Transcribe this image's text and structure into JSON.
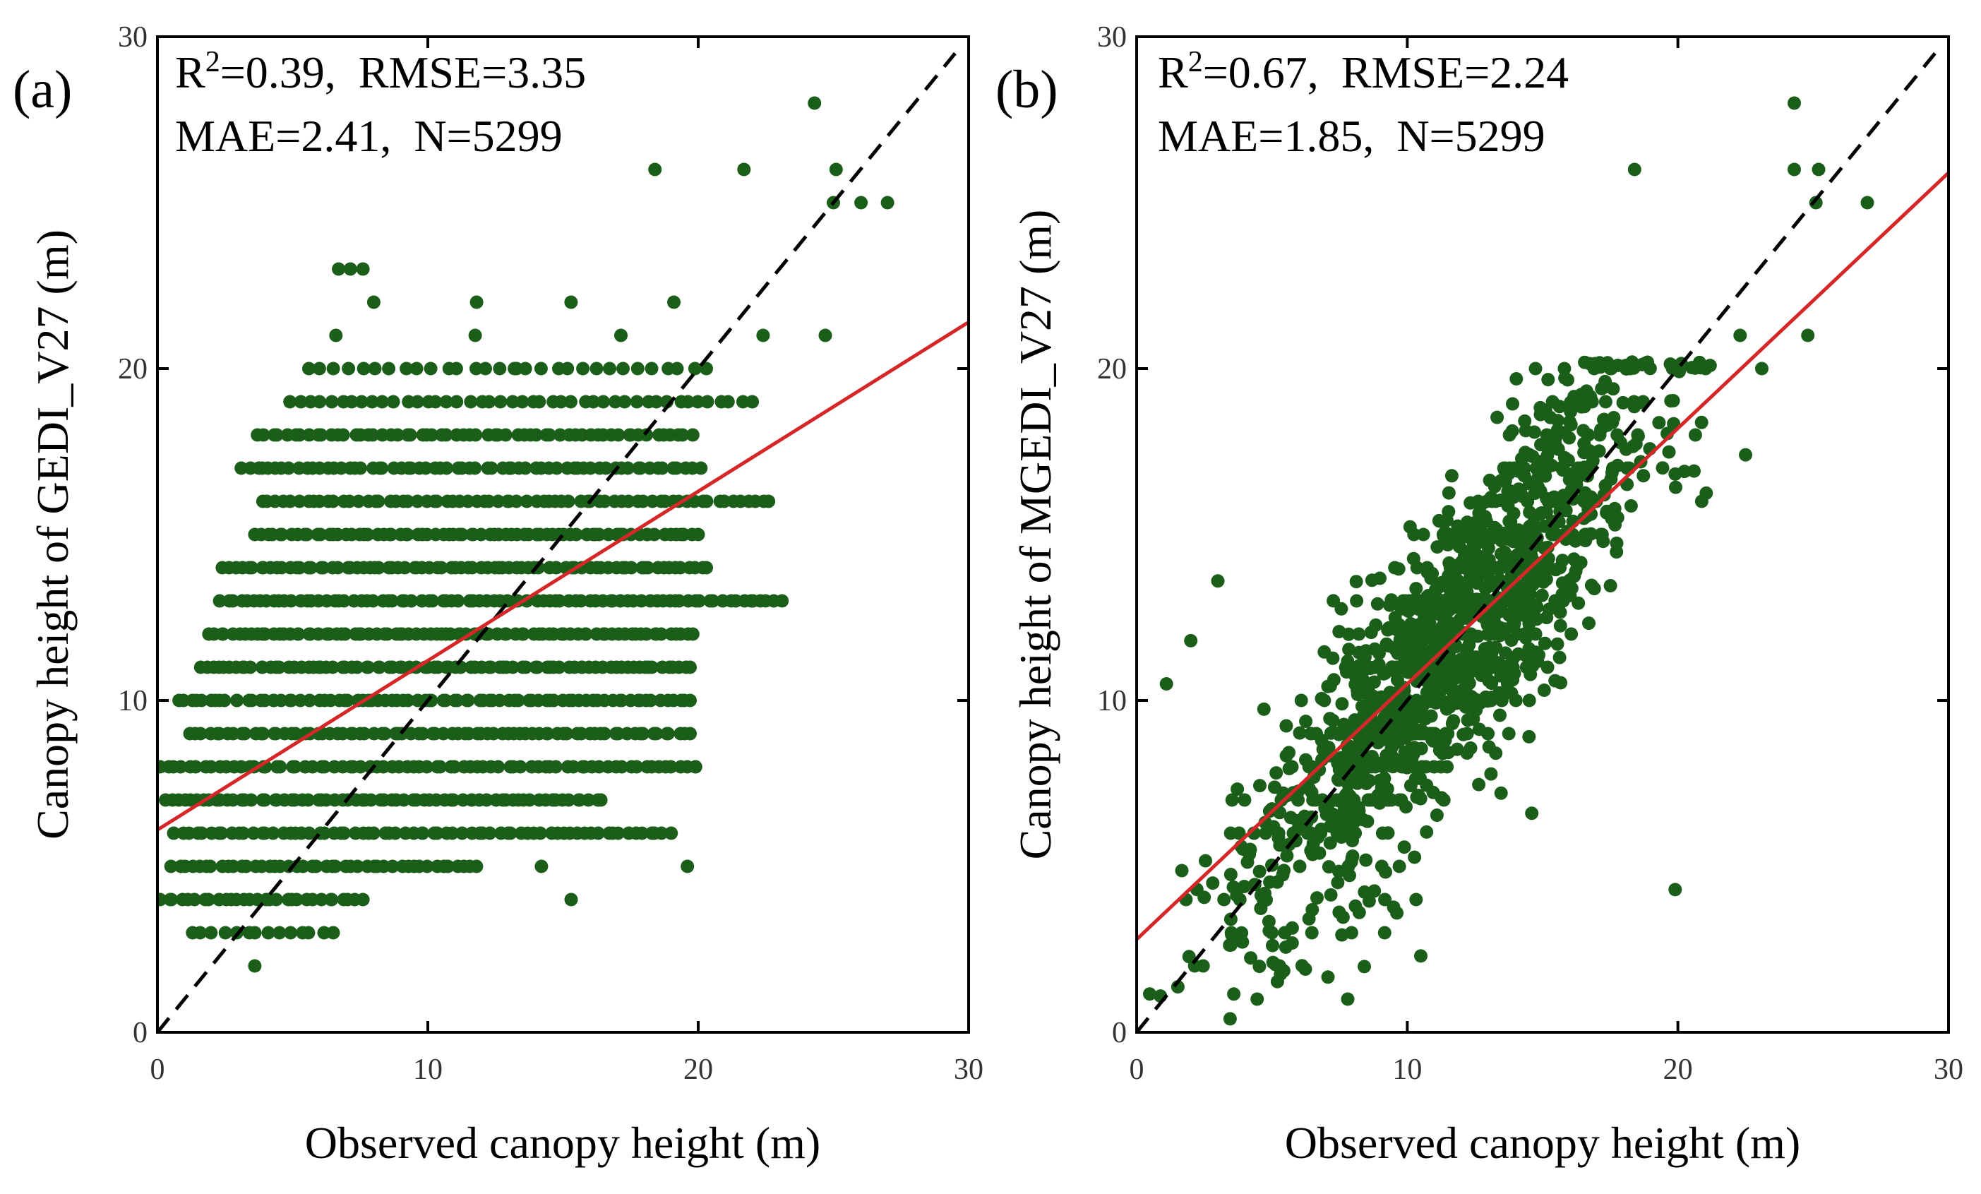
{
  "chart_data": [
    {
      "type": "scatter",
      "panel_label": "(a)",
      "xlabel": "Observed canopy height (m)",
      "ylabel": "Canopy height of GEDI_V27 (m)",
      "xlim": [
        0,
        30
      ],
      "ylim": [
        0,
        30
      ],
      "xticks": [
        "0",
        "10",
        "20",
        "30"
      ],
      "yticks": [
        "0",
        "10",
        "20",
        "30"
      ],
      "stats": {
        "line1_prefix": "R",
        "line1_sup": "2",
        "line1_rest": "=0.39,  RMSE=3.35",
        "line2": "MAE=2.41,  N=5299"
      },
      "n": 5299,
      "fit_line": {
        "slope": 0.51,
        "intercept": 6.1,
        "color": "#d62728"
      },
      "reference_line": {
        "type": "1:1",
        "style": "dashed",
        "color": "#000000"
      },
      "point_color": "#1a5e1a",
      "quantized_y": true,
      "clusters": [
        {
          "y": 2,
          "x_min": 3.5,
          "x_max": 3.7,
          "count": 1
        },
        {
          "y": 3,
          "x_min": 1.3,
          "x_max": 6.5,
          "count": 14
        },
        {
          "y": 4,
          "x_min": 0.1,
          "x_max": 7.6,
          "count": 30
        },
        {
          "y": 5,
          "x_min": 0.5,
          "x_max": 11.8,
          "count": 45
        },
        {
          "y": 6,
          "x_min": 0.6,
          "x_max": 19.0,
          "count": 70
        },
        {
          "y": 7,
          "x_min": 0.3,
          "x_max": 16.4,
          "count": 70
        },
        {
          "y": 8,
          "x_min": 0.1,
          "x_max": 19.9,
          "count": 75
        },
        {
          "y": 9,
          "x_min": 1.2,
          "x_max": 19.7,
          "count": 80
        },
        {
          "y": 10,
          "x_min": 0.8,
          "x_max": 19.7,
          "count": 85
        },
        {
          "y": 11,
          "x_min": 1.6,
          "x_max": 19.7,
          "count": 85
        },
        {
          "y": 12,
          "x_min": 1.9,
          "x_max": 19.8,
          "count": 85
        },
        {
          "y": 13,
          "x_min": 2.3,
          "x_max": 23.1,
          "count": 85
        },
        {
          "y": 14,
          "x_min": 2.4,
          "x_max": 20.3,
          "count": 80
        },
        {
          "y": 15,
          "x_min": 3.6,
          "x_max": 20.0,
          "count": 75
        },
        {
          "y": 16,
          "x_min": 3.9,
          "x_max": 22.6,
          "count": 70
        },
        {
          "y": 17,
          "x_min": 3.1,
          "x_max": 20.1,
          "count": 65
        },
        {
          "y": 18,
          "x_min": 3.7,
          "x_max": 19.8,
          "count": 60
        },
        {
          "y": 19,
          "x_min": 4.9,
          "x_max": 22.0,
          "count": 45
        },
        {
          "y": 20,
          "x_min": 5.6,
          "x_max": 20.3,
          "count": 30
        },
        {
          "y": 21,
          "x_min": 6.6,
          "x_max": 22.4,
          "count": 4
        },
        {
          "y": 22,
          "x_min": 8.0,
          "x_max": 19.1,
          "count": 4
        },
        {
          "y": 23,
          "x_min": 6.7,
          "x_max": 7.6,
          "count": 3
        },
        {
          "y": 25,
          "x_min": 25.0,
          "x_max": 27.0,
          "count": 3
        },
        {
          "y": 26,
          "x_min": 18.4,
          "x_max": 25.1,
          "count": 3
        },
        {
          "y": 28,
          "x_min": 24.3,
          "x_max": 24.3,
          "count": 1
        }
      ],
      "outliers": [
        {
          "x": 15.3,
          "y": 4
        },
        {
          "x": 19.6,
          "y": 5
        },
        {
          "x": 14.2,
          "y": 5
        },
        {
          "x": 19.9,
          "y": 8
        },
        {
          "x": 24.7,
          "y": 21
        },
        {
          "x": 13.2,
          "y": 20
        }
      ]
    },
    {
      "type": "scatter",
      "panel_label": "(b)",
      "xlabel": "Observed canopy height (m)",
      "ylabel": "Canopy height of MGEDI_V27 (m)",
      "xlim": [
        0,
        30
      ],
      "ylim": [
        0,
        30
      ],
      "xticks": [
        "0",
        "10",
        "20",
        "30"
      ],
      "yticks": [
        "0",
        "10",
        "20",
        "30"
      ],
      "stats": {
        "line1_prefix": "R",
        "line1_sup": "2",
        "line1_rest": "=0.67,  RMSE=2.24",
        "line2": "MAE=1.85,  N=5299"
      },
      "n": 5299,
      "fit_line": {
        "slope": 0.77,
        "intercept": 2.8,
        "color": "#d62728"
      },
      "reference_line": {
        "type": "1:1",
        "style": "dashed",
        "color": "#000000"
      },
      "point_color": "#1a5e1a",
      "quantized_y": false,
      "cloud": {
        "x_mean": 11.5,
        "x_sd": 3.8,
        "x_min": 0.2,
        "x_max": 21.5,
        "noise_sd": 2.1,
        "count": 1400
      },
      "outliers": [
        {
          "x": 24.3,
          "y": 28
        },
        {
          "x": 24.3,
          "y": 26
        },
        {
          "x": 25.2,
          "y": 26
        },
        {
          "x": 25.1,
          "y": 25
        },
        {
          "x": 27.0,
          "y": 25
        },
        {
          "x": 18.4,
          "y": 26
        },
        {
          "x": 24.8,
          "y": 21
        },
        {
          "x": 22.3,
          "y": 21
        },
        {
          "x": 23.1,
          "y": 20
        },
        {
          "x": 22.5,
          "y": 17.4
        },
        {
          "x": 19.9,
          "y": 4.3
        },
        {
          "x": 10.5,
          "y": 2.3
        },
        {
          "x": 7.8,
          "y": 1
        },
        {
          "x": 1.1,
          "y": 10.5
        },
        {
          "x": 3.0,
          "y": 13.6
        },
        {
          "x": 2.0,
          "y": 11.8
        },
        {
          "x": 14.6,
          "y": 6.6
        }
      ]
    }
  ]
}
